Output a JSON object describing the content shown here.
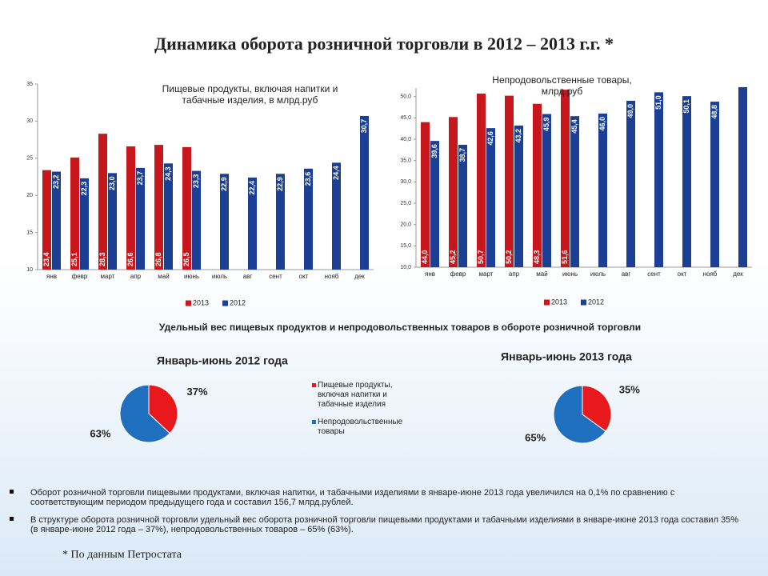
{
  "title": "Динамика оборота розничной торговли в 2012 – 2013 г.г.  *",
  "chart_data": [
    {
      "type": "bar",
      "title": "Пищевые продукты, включая напитки и табачные изделия, в млрд.руб",
      "categories": [
        "янв",
        "февр",
        "март",
        "апр",
        "май",
        "июнь",
        "июль",
        "авг",
        "сент",
        "окт",
        "нояб",
        "дек"
      ],
      "series": [
        {
          "name": "2013",
          "color": "#c8161d",
          "values": [
            23.4,
            25.1,
            28.3,
            26.6,
            26.8,
            26.5,
            null,
            null,
            null,
            null,
            null,
            null
          ],
          "value_labels": [
            "23,4",
            "25,1",
            "28,3",
            "26,6",
            "26,8",
            "26,5",
            null,
            null,
            null,
            null,
            null,
            null
          ]
        },
        {
          "name": "2012",
          "color": "#1a3f95",
          "values": [
            23.2,
            22.3,
            23.0,
            23.7,
            24.3,
            23.3,
            22.9,
            22.4,
            22.9,
            23.6,
            24.4,
            30.7
          ],
          "value_labels": [
            "23,2",
            "22,3",
            "23,0",
            "23,7",
            "24,3",
            "23,3",
            "22,9",
            "22,4",
            "22,9",
            "23,6",
            "24,4",
            "30,7"
          ]
        }
      ],
      "ylim": [
        10,
        35
      ],
      "yticks": [
        10,
        15,
        20,
        25,
        30,
        35
      ],
      "legend": "bottom"
    },
    {
      "type": "bar",
      "title": "Непродовольственные товары, млрд.руб",
      "categories": [
        "янв",
        "февр",
        "март",
        "апр",
        "май",
        "июнь",
        "июль",
        "авг",
        "сент",
        "окт",
        "нояб",
        "дек"
      ],
      "series": [
        {
          "name": "2013",
          "color": "#c8161d",
          "values": [
            44.0,
            45.2,
            50.7,
            50.2,
            48.3,
            51.6,
            null,
            null,
            null,
            null,
            null,
            null
          ],
          "value_labels": [
            "44,0",
            "45,2",
            "50,7",
            "50,2",
            "48,3",
            "51,6",
            null,
            null,
            null,
            null,
            null,
            null
          ]
        },
        {
          "name": "2012",
          "color": "#1a3f95",
          "values": [
            39.6,
            38.7,
            42.6,
            43.2,
            45.9,
            45.4,
            46.0,
            49.0,
            51.0,
            50.1,
            48.8,
            52.2
          ],
          "value_labels": [
            "39,6",
            "38,7",
            "42,6",
            "43,2",
            "45,9",
            "45,4",
            "46,0",
            "49,0",
            "51,0",
            "50,1",
            "48,8",
            null
          ]
        }
      ],
      "ylim": [
        10,
        52
      ],
      "yticks": [
        {
          "value": 10,
          "label": "10,0"
        },
        {
          "value": 15,
          "label": "15,0"
        },
        {
          "value": 20,
          "label": "20,0"
        },
        {
          "value": 25,
          "label": "25,0"
        },
        {
          "value": 30,
          "label": "30,0"
        },
        {
          "value": 35,
          "label": "35,0"
        },
        {
          "value": 40,
          "label": "40,0"
        },
        {
          "value": 45,
          "label": "45,0"
        },
        {
          "value": 50,
          "label": "50,0"
        }
      ],
      "legend": "bottom"
    },
    {
      "type": "pie",
      "title": "Январь-июнь 2012 года",
      "categories": [
        "Пищевые продукты, включая напитки и табачные изделия",
        "Непродовольственные товары"
      ],
      "colors": [
        "#e8181d",
        "#1f6fbf"
      ],
      "values": [
        37,
        63
      ],
      "value_labels": [
        "37%",
        "63%"
      ],
      "legend": "right"
    },
    {
      "type": "pie",
      "title": "Январь-июнь 2013 года",
      "colors": [
        "#e8181d",
        "#1f6fbf"
      ],
      "values": [
        35,
        65
      ],
      "value_labels": [
        "35%",
        "65%"
      ]
    }
  ],
  "section_title": "Удельный вес пищевых продуктов и непродовольственных товаров в обороте розничной торговли",
  "bullets": [
    "Оборот розничной торговли пищевыми продуктами, включая напитки, и табачными изделиями в январе-июне 2013 года увеличился на 0,1% по сравнению с соответствующим периодом предыдущего года и составил 156,7 млрд.рублей.",
    "В структуре оборота розничной торговли удельный вес оборота розничной торговли пищевыми продуктами и табачными изделиями в январе-июне 2013 года составил 35% (в январе-июне 2012 года – 37%), непродовольственных товаров – 65% (63%)."
  ],
  "footnote": "* По данным Петростата"
}
